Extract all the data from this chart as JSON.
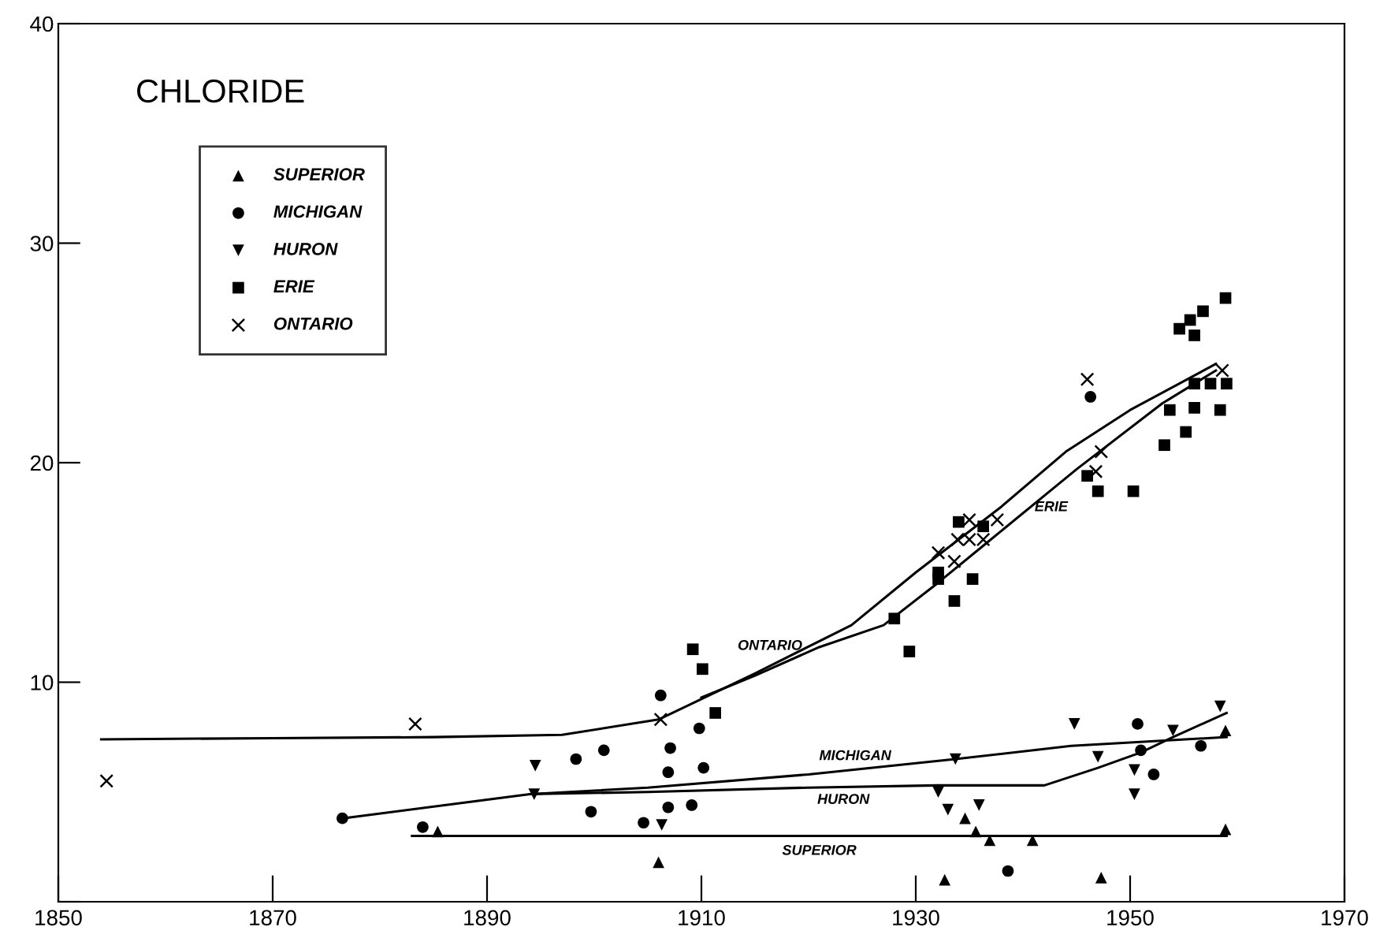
{
  "chart_data": {
    "type": "scatter",
    "title": "CHLORIDE",
    "xlim": [
      1850,
      1970
    ],
    "xticks": [
      1850,
      1870,
      1890,
      1910,
      1930,
      1950,
      1970
    ],
    "ylim": [
      0,
      40
    ],
    "yticks": [
      {
        "value": 0,
        "label": null
      },
      10,
      20,
      30,
      40
    ],
    "grid": false,
    "legend": "top left",
    "series": [
      {
        "name": "SUPERIOR",
        "color": "#000000",
        "marker": "triangle",
        "x": [
          1885.4,
          1906,
          1932.7,
          1934.6,
          1935.6,
          1936.9,
          1940.9,
          1947.3,
          1958.9,
          1958.9
        ],
        "values": [
          3.2,
          1.8,
          1.0,
          3.8,
          3.2,
          2.8,
          2.8,
          1.1,
          7.8,
          3.3
        ]
      },
      {
        "name": "MICHIGAN",
        "color": "#000000",
        "marker": "circle",
        "x": [
          1876.5,
          1884,
          1898.3,
          1899.7,
          1900.9,
          1904.6,
          1906.2,
          1906.9,
          1906.9,
          1907.1,
          1909.1,
          1909.8,
          1910.2,
          1938.6,
          1946.3,
          1950.7,
          1951,
          1952.2,
          1956.6
        ],
        "values": [
          3.8,
          3.4,
          6.5,
          4.1,
          6.9,
          3.6,
          9.4,
          5.9,
          4.3,
          7.0,
          4.4,
          7.9,
          6.1,
          1.4,
          23.0,
          8.1,
          6.9,
          5.8,
          7.1
        ]
      },
      {
        "name": "HURON",
        "color": "#000000",
        "marker": "triangle_down",
        "x": [
          1894.4,
          1894.5,
          1906.3,
          1932.1,
          1933,
          1933.7,
          1935.9,
          1944.8,
          1947,
          1950.4,
          1950.4,
          1954,
          1958.4
        ],
        "values": [
          4.9,
          6.2,
          3.5,
          5.0,
          4.2,
          6.5,
          4.4,
          8.1,
          6.6,
          6.0,
          4.9,
          7.8,
          8.9
        ]
      },
      {
        "name": "ERIE",
        "color": "#000000",
        "marker": "square",
        "x": [
          1909.2,
          1910.1,
          1911.3,
          1928,
          1929.4,
          1932.1,
          1932.1,
          1933.6,
          1934,
          1935.3,
          1936.3,
          1946,
          1947,
          1950.3,
          1953.2,
          1953.7,
          1954.6,
          1955.2,
          1955.6,
          1956,
          1956,
          1956,
          1956.8,
          1957.5,
          1958.4,
          1958.9,
          1959
        ],
        "values": [
          11.5,
          10.6,
          8.6,
          12.9,
          11.4,
          15.0,
          14.7,
          13.7,
          17.3,
          14.7,
          17.1,
          19.4,
          18.7,
          18.7,
          20.8,
          22.4,
          26.1,
          21.4,
          26.5,
          22.5,
          25.8,
          23.6,
          26.9,
          23.6,
          22.4,
          27.5,
          23.6
        ]
      },
      {
        "name": "ONTARIO",
        "color": "#000000",
        "marker": "cross",
        "x": [
          1854.5,
          1883.3,
          1906.2,
          1932.1,
          1933.6,
          1933.9,
          1935,
          1935,
          1936.3,
          1937.6,
          1946,
          1946.8,
          1947.3,
          1958.6
        ],
        "values": [
          5.5,
          8.1,
          8.3,
          15.9,
          15.5,
          16.5,
          17.4,
          16.5,
          16.5,
          17.4,
          23.8,
          19.6,
          20.5,
          24.2
        ]
      },
      {
        "type": "line",
        "name": "SUPERIOR",
        "color": "#000000",
        "x": [
          1883,
          1959
        ],
        "values": [
          3.0,
          3.0
        ]
      },
      {
        "type": "line",
        "name": "MICHIGAN",
        "color": "#000000",
        "x": [
          1876.5,
          1894,
          1905,
          1920,
          1933.7,
          1944.5,
          1959
        ],
        "values": [
          3.8,
          4.9,
          5.2,
          5.8,
          6.5,
          7.1,
          7.5
        ]
      },
      {
        "type": "line",
        "name": "HURON",
        "color": "#000000",
        "x": [
          1894,
          1905,
          1920,
          1932,
          1942,
          1947,
          1951,
          1954,
          1959
        ],
        "values": [
          4.9,
          5.0,
          5.2,
          5.3,
          5.3,
          6.1,
          6.8,
          7.5,
          8.6
        ]
      },
      {
        "type": "line",
        "name": "ERIE",
        "color": "#000000",
        "x": [
          1910,
          1915,
          1921,
          1927,
          1932,
          1937,
          1945,
          1953,
          1958
        ],
        "values": [
          9.3,
          10.3,
          11.6,
          12.6,
          14.5,
          16.5,
          19.7,
          22.7,
          24.2
        ]
      },
      {
        "type": "line",
        "name": "ONTARIO",
        "color": "#000000",
        "x": [
          1854,
          1870,
          1885,
          1897,
          1906,
          1915,
          1924,
          1930,
          1938,
          1944,
          1950,
          1958
        ],
        "values": [
          7.4,
          7.45,
          7.5,
          7.6,
          8.3,
          10.4,
          12.6,
          15.0,
          18.0,
          20.5,
          22.4,
          24.5
        ]
      }
    ]
  }
}
